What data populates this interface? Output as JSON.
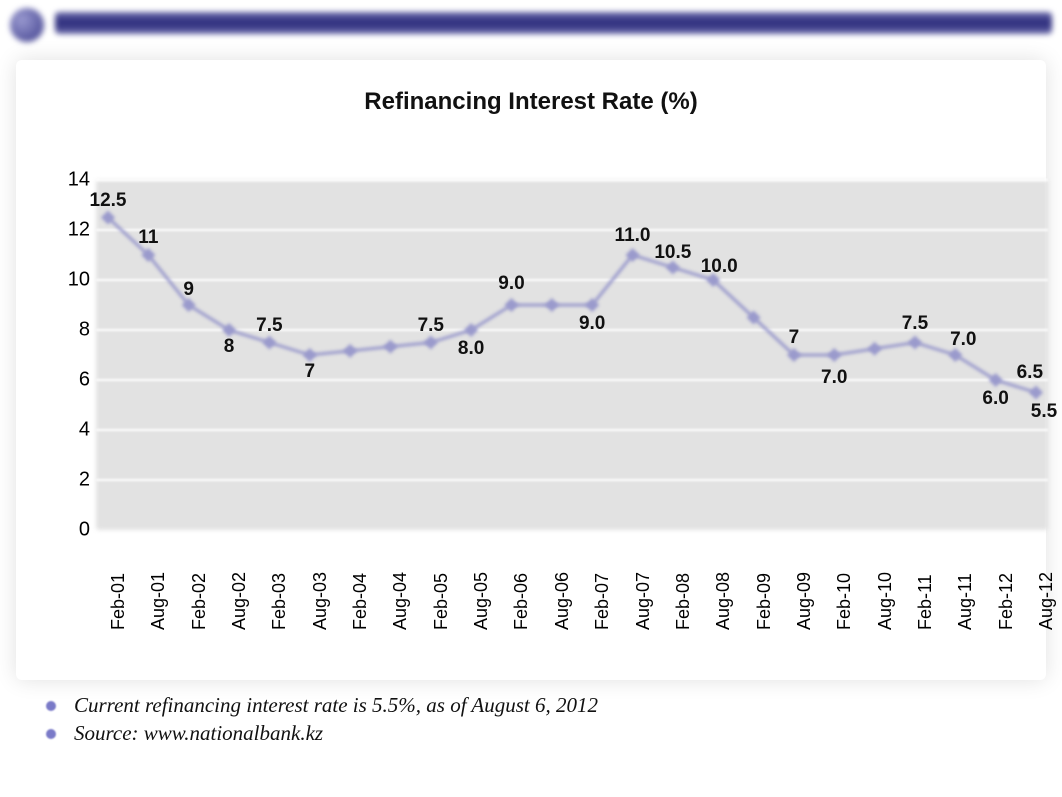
{
  "header": {
    "bar_gradient": [
      "#6a6aaa",
      "#2a2a7a",
      "#6a6aaa"
    ],
    "dot_colors": [
      "#9a9ad0",
      "#3b3b8a"
    ]
  },
  "chart": {
    "type": "line",
    "title": "Refinancing Interest Rate (%)",
    "title_fontsize": 24,
    "plot_bg": "#e2e2e2",
    "grid_color": "#ffffff",
    "line_color": "#9a9acc",
    "marker_color": "#9a9acc",
    "marker_type": "diamond",
    "marker_size": 7,
    "line_width": 3,
    "ylim": [
      0,
      14
    ],
    "ytick_step": 2,
    "yticks": [
      0,
      2,
      4,
      6,
      8,
      10,
      12,
      14
    ],
    "y_fontsize": 20,
    "x_fontsize": 18,
    "data_label_fontsize": 19,
    "data_label_weight": "bold",
    "x_labels": [
      "Feb-01",
      "Aug-01",
      "Feb-02",
      "Aug-02",
      "Feb-03",
      "Aug-03",
      "Feb-04",
      "Aug-04",
      "Feb-05",
      "Aug-05",
      "Feb-06",
      "Aug-06",
      "Feb-07",
      "Aug-07",
      "Feb-08",
      "Aug-08",
      "Feb-09",
      "Aug-09",
      "Feb-10",
      "Aug-10",
      "Feb-11",
      "Aug-11",
      "Feb-12",
      "Aug-12"
    ],
    "values": [
      12.5,
      11,
      9,
      8,
      7.5,
      7,
      null,
      null,
      7.5,
      8.0,
      9.0,
      null,
      9.0,
      11.0,
      10.5,
      10.0,
      null,
      7,
      7.0,
      null,
      7.5,
      7.0,
      6.0,
      5.5
    ],
    "extra_label": {
      "text": "6.5",
      "after_index": 22
    },
    "label_nudges": {
      "2": {
        "dy": -4
      },
      "3": {
        "dy": 28
      },
      "4": {
        "dy": -6
      },
      "5": {
        "dy": 28
      },
      "8": {
        "dy": -6
      },
      "9": {
        "dy": 30
      },
      "10": {
        "dy": -10
      },
      "12": {
        "dy": 30
      },
      "13": {
        "dy": -8
      },
      "14": {
        "dy": -4
      },
      "15": {
        "dy": -2,
        "dx": 6
      },
      "17": {
        "dy": -6
      },
      "18": {
        "dy": 34
      },
      "20": {
        "dy": -8
      },
      "21": {
        "dy": -4,
        "dx": 8
      },
      "22": {
        "dy": 30
      },
      "23": {
        "dy": 30,
        "dx": 8
      }
    }
  },
  "notes": {
    "items": [
      "Current refinancing interest rate is 5.5%, as of August 6, 2012",
      "Source: www.nationalbank.kz"
    ],
    "bullet_color": "#7a7ac8",
    "font": "Georgia",
    "fontsize": 21
  }
}
